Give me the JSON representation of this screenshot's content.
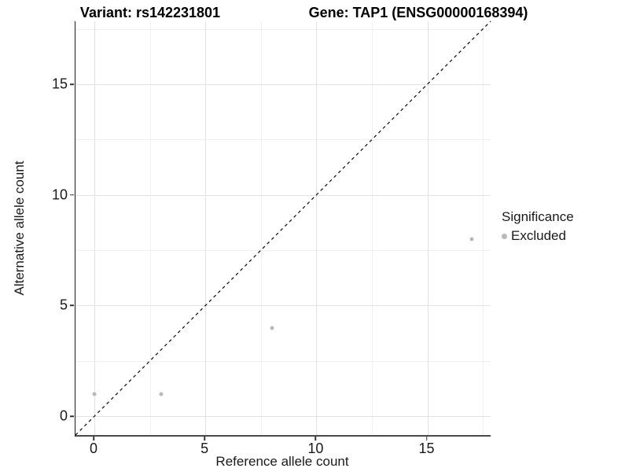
{
  "titles": {
    "variant": "Variant: rs142231801",
    "gene": "Gene: TAP1 (ENSG00000168394)"
  },
  "chart_data": {
    "type": "scatter",
    "title": "Variant: rs142231801   Gene: TAP1 (ENSG00000168394)",
    "xlabel": "Reference allele count",
    "ylabel": "Alternative allele count",
    "xlim": [
      -0.85,
      17.85
    ],
    "ylim": [
      -0.85,
      17.85
    ],
    "x_major_ticks": [
      0,
      5,
      10,
      15
    ],
    "y_major_ticks": [
      0,
      5,
      10,
      15
    ],
    "x_minor_ticks": [
      2.5,
      7.5,
      12.5,
      17.5
    ],
    "y_minor_ticks": [
      2.5,
      7.5,
      12.5,
      17.5
    ],
    "grid": true,
    "series": [
      {
        "name": "Excluded",
        "color": "#b9b9b9",
        "points": [
          {
            "x": 0,
            "y": 1
          },
          {
            "x": 3,
            "y": 1
          },
          {
            "x": 8,
            "y": 4
          },
          {
            "x": 17,
            "y": 8
          }
        ]
      }
    ],
    "identity_line": {
      "from": [
        -0.85,
        -0.85
      ],
      "to": [
        17.85,
        17.85
      ],
      "style": "dashed",
      "color": "#1a1a1a"
    },
    "legend": {
      "position": "right",
      "title": "Significance",
      "items": [
        {
          "label": "Excluded",
          "color": "#b9b9b9"
        }
      ]
    }
  }
}
